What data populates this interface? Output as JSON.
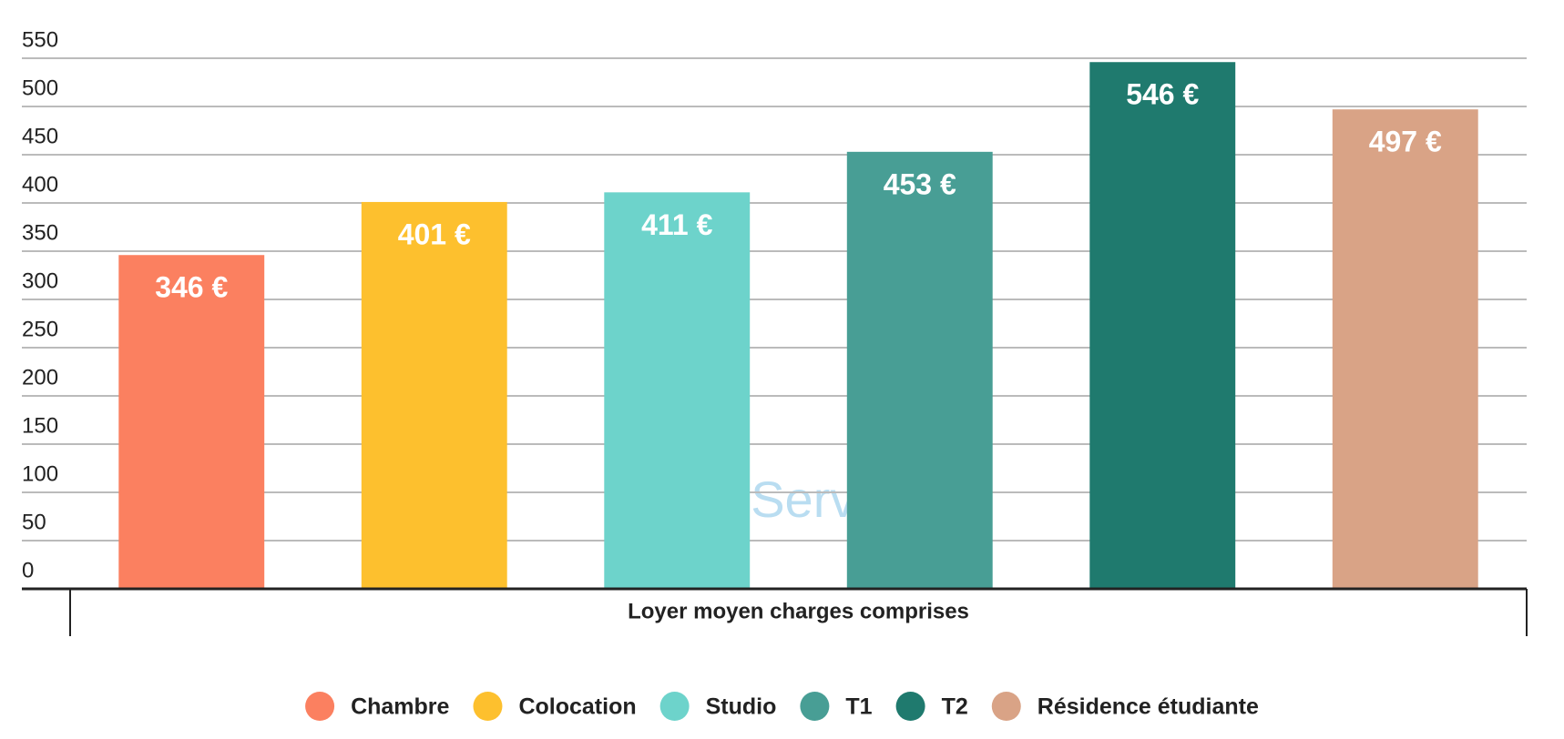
{
  "chart_data": {
    "type": "bar",
    "categories": [
      "Loyer moyen charges comprises"
    ],
    "series": [
      {
        "name": "Chambre",
        "color": "#fb8060",
        "values": [
          346
        ],
        "value_labels": [
          "346 €"
        ]
      },
      {
        "name": "Colocation",
        "color": "#fdc02e",
        "values": [
          401
        ],
        "value_labels": [
          "401 €"
        ]
      },
      {
        "name": "Studio",
        "color": "#6dd3cb",
        "values": [
          411
        ],
        "value_labels": [
          "411 €"
        ]
      },
      {
        "name": "T1",
        "color": "#489e95",
        "values": [
          453
        ],
        "value_labels": [
          "453 €"
        ]
      },
      {
        "name": "T2",
        "color": "#1f7a6e",
        "values": [
          546
        ],
        "value_labels": [
          "546 €"
        ]
      },
      {
        "name": "Résidence étudiante",
        "color": "#d9a386",
        "values": [
          497
        ],
        "value_labels": [
          "497 €"
        ]
      }
    ],
    "ylim": [
      0,
      550
    ],
    "yticks": [
      0,
      50,
      100,
      150,
      200,
      250,
      300,
      350,
      400,
      450,
      500,
      550
    ],
    "grid": true,
    "legend": "bottom",
    "watermark": "LOCService"
  }
}
